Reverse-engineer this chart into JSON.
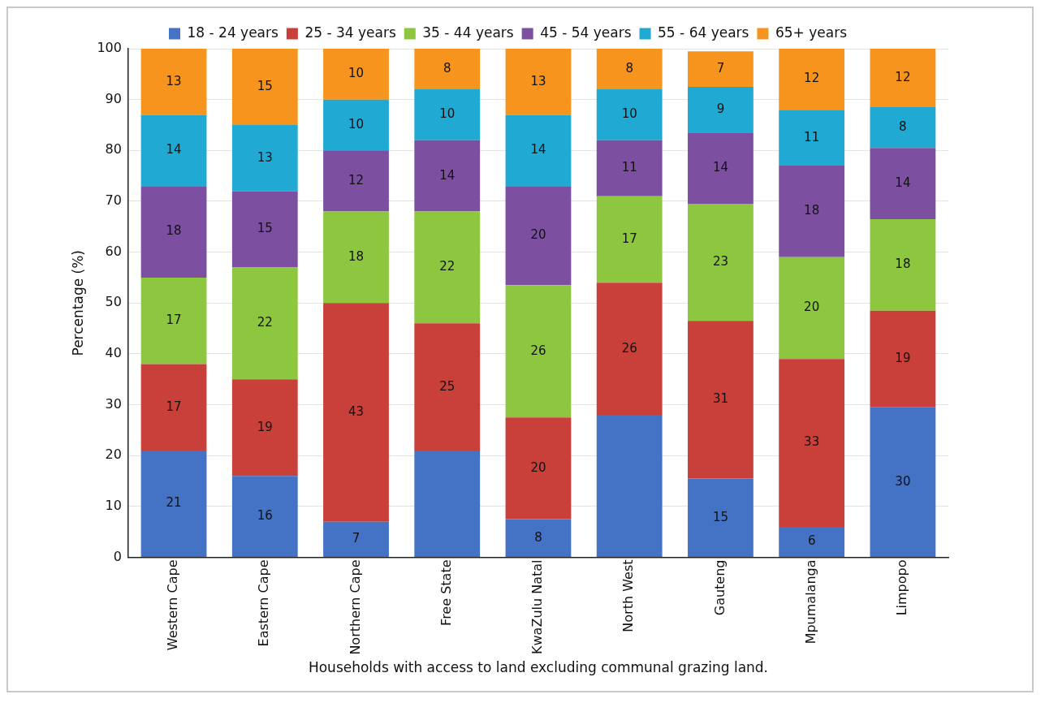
{
  "chart_data": {
    "type": "bar",
    "stacked": true,
    "xlabel": "Households with access to land excluding communal grazing land.",
    "ylabel": "Percentage (%)",
    "categories": [
      "Western Cape",
      "Eastern Cape",
      "Northern Cape",
      "Free State",
      "KwaZulu Natal",
      "North West",
      "Gauteng",
      "Mpumalanga",
      "Limpopo"
    ],
    "series": [
      {
        "name": "18 - 24 years",
        "color": "#4472c4",
        "values": [
          21,
          16,
          7,
          21,
          7.5,
          28,
          15.5,
          6,
          29.5
        ],
        "value_labels": [
          "21",
          "16",
          "7",
          null,
          "8",
          null,
          "15",
          "6",
          "30"
        ]
      },
      {
        "name": "25 - 34 years",
        "color": "#c9403a",
        "values": [
          17,
          19,
          43,
          25,
          20,
          26,
          31,
          33,
          19
        ],
        "value_labels": [
          "17",
          "19",
          "43",
          "25",
          "20",
          "26",
          "31",
          "33",
          "19"
        ]
      },
      {
        "name": "35 - 44 years",
        "color": "#8dc63f",
        "values": [
          17,
          22,
          18,
          22,
          26,
          17,
          23,
          20,
          18
        ],
        "value_labels": [
          "17",
          "22",
          "18",
          "22",
          "26",
          "17",
          "23",
          "20",
          "18"
        ]
      },
      {
        "name": "45 - 54 years",
        "color": "#7d4fa1",
        "values": [
          18,
          15,
          12,
          14,
          19.5,
          11,
          14,
          18,
          14
        ],
        "value_labels": [
          "18",
          "15",
          "12",
          "14",
          "20",
          "11",
          "14",
          "18",
          "14"
        ]
      },
      {
        "name": "55 - 64 years",
        "color": "#1fa9d3",
        "values": [
          14,
          13,
          10,
          10,
          14,
          10,
          9,
          11,
          8
        ],
        "value_labels": [
          "14",
          "13",
          "10",
          "10",
          "14",
          "10",
          "9",
          "11",
          "8"
        ]
      },
      {
        "name": "65+ years",
        "color": "#f7941d",
        "values": [
          13,
          15,
          10,
          8,
          13,
          8,
          7,
          12,
          11.5
        ],
        "value_labels": [
          "13",
          "15",
          "10",
          "8",
          "13",
          "8",
          "7",
          "12",
          "12"
        ]
      }
    ],
    "ylim": [
      0,
      100
    ],
    "yticks": [
      0,
      10,
      20,
      30,
      40,
      50,
      60,
      70,
      80,
      90,
      100
    ],
    "grid": "y",
    "legend": "top"
  }
}
